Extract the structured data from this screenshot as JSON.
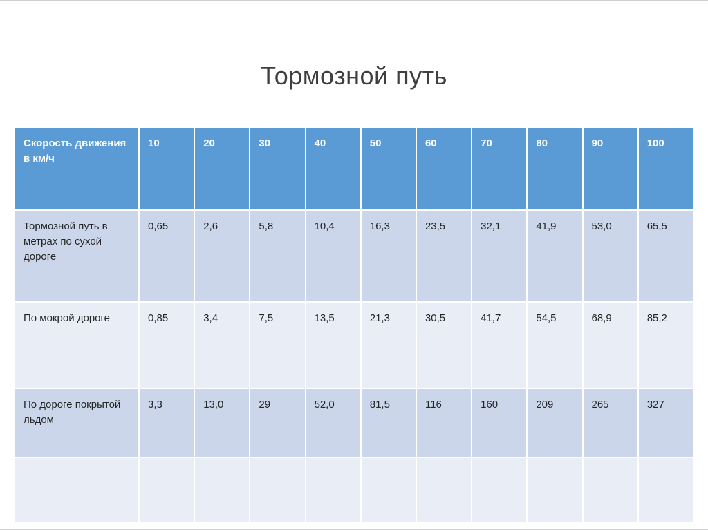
{
  "slide": {
    "title": "Тормозной путь"
  },
  "table": {
    "header_label": "Скорость движения в км/ч",
    "columns": [
      "10",
      "20",
      "30",
      "40",
      "50",
      "60",
      "70",
      "80",
      "90",
      "100"
    ],
    "rows": [
      {
        "label": "Тормозной путь в метрах по сухой дороге",
        "values": [
          "0,65",
          "2,6",
          "5,8",
          "10,4",
          "16,3",
          "23,5",
          "32,1",
          "41,9",
          "53,0",
          "65,5"
        ]
      },
      {
        "label": "По мокрой дороге",
        "values": [
          "0,85",
          "3,4",
          "7,5",
          "13,5",
          "21,3",
          "30,5",
          "41,7",
          "54,5",
          "68,9",
          "85,2"
        ]
      },
      {
        "label": "По дороге покрытой льдом",
        "values": [
          "3,3",
          "13,0",
          "29",
          "52,0",
          "81,5",
          "116",
          "160",
          "209",
          "265",
          "327"
        ]
      }
    ],
    "colors": {
      "header_bg": "#5b9bd5",
      "band_dark": "#ccd6ea",
      "band_light": "#e9edf6",
      "title_text": "#3f3f3f",
      "body_text": "#262626"
    }
  }
}
